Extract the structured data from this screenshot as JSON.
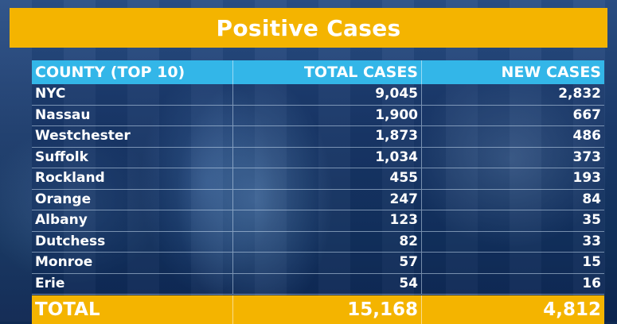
{
  "title": "Positive Cases",
  "chart_data": {
    "type": "table",
    "title": "Positive Cases",
    "columns": [
      "COUNTY (TOP 10)",
      "TOTAL CASES",
      "NEW CASES"
    ],
    "rows": [
      {
        "county": "NYC",
        "total": "9,045",
        "new": "2,832"
      },
      {
        "county": "Nassau",
        "total": "1,900",
        "new": "667"
      },
      {
        "county": "Westchester",
        "total": "1,873",
        "new": "486"
      },
      {
        "county": "Suffolk",
        "total": "1,034",
        "new": "373"
      },
      {
        "county": "Rockland",
        "total": "455",
        "new": "193"
      },
      {
        "county": "Orange",
        "total": "247",
        "new": "84"
      },
      {
        "county": "Albany",
        "total": "123",
        "new": "35"
      },
      {
        "county": "Dutchess",
        "total": "82",
        "new": "33"
      },
      {
        "county": "Monroe",
        "total": "57",
        "new": "15"
      },
      {
        "county": "Erie",
        "total": "54",
        "new": "16"
      }
    ],
    "total": {
      "label": "TOTAL",
      "total": "15,168",
      "new": "4,812"
    }
  },
  "colors": {
    "title_bar": "#f4b400",
    "header_row": "#33b6e8",
    "total_row": "#f4b400",
    "text": "#ffffff"
  }
}
